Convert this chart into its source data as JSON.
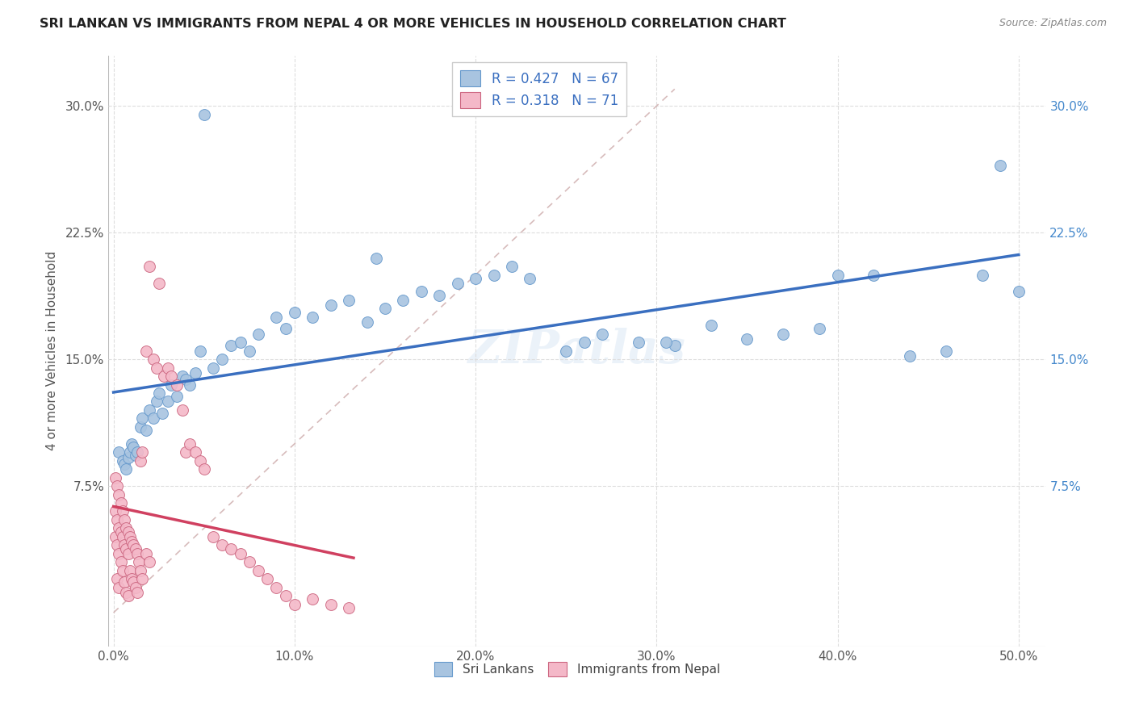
{
  "title": "SRI LANKAN VS IMMIGRANTS FROM NEPAL 4 OR MORE VEHICLES IN HOUSEHOLD CORRELATION CHART",
  "source": "Source: ZipAtlas.com",
  "ylabel_label": "4 or more Vehicles in Household",
  "x_tick_vals": [
    0.0,
    0.1,
    0.2,
    0.3,
    0.4,
    0.5
  ],
  "y_tick_vals": [
    0.075,
    0.15,
    0.225,
    0.3
  ],
  "xmin": -0.003,
  "xmax": 0.515,
  "ymin": -0.02,
  "ymax": 0.33,
  "sri_R": 0.427,
  "sri_N": 67,
  "nep_R": 0.318,
  "nep_N": 71,
  "color_sri": "#a8c4e0",
  "color_sri_edge": "#6699cc",
  "color_nep": "#f4b8c8",
  "color_nep_edge": "#cc6680",
  "color_sri_line": "#3a6fc0",
  "color_nep_line": "#d04060",
  "color_diag": "#d0b0b0",
  "sri_x": [
    0.003,
    0.005,
    0.006,
    0.007,
    0.008,
    0.009,
    0.01,
    0.011,
    0.012,
    0.013,
    0.015,
    0.016,
    0.018,
    0.02,
    0.022,
    0.024,
    0.025,
    0.027,
    0.03,
    0.032,
    0.035,
    0.038,
    0.04,
    0.042,
    0.045,
    0.048,
    0.05,
    0.055,
    0.06,
    0.065,
    0.07,
    0.075,
    0.08,
    0.09,
    0.095,
    0.1,
    0.11,
    0.12,
    0.13,
    0.14,
    0.15,
    0.16,
    0.17,
    0.18,
    0.19,
    0.2,
    0.21,
    0.22,
    0.23,
    0.25,
    0.26,
    0.27,
    0.29,
    0.31,
    0.33,
    0.35,
    0.37,
    0.39,
    0.4,
    0.42,
    0.44,
    0.46,
    0.48,
    0.49,
    0.5,
    0.305,
    0.145
  ],
  "sri_y": [
    0.095,
    0.09,
    0.088,
    0.085,
    0.092,
    0.095,
    0.1,
    0.098,
    0.093,
    0.095,
    0.11,
    0.115,
    0.108,
    0.12,
    0.115,
    0.125,
    0.13,
    0.118,
    0.125,
    0.135,
    0.128,
    0.14,
    0.138,
    0.135,
    0.142,
    0.155,
    0.295,
    0.145,
    0.15,
    0.158,
    0.16,
    0.155,
    0.165,
    0.175,
    0.168,
    0.178,
    0.175,
    0.182,
    0.185,
    0.172,
    0.18,
    0.185,
    0.19,
    0.188,
    0.195,
    0.198,
    0.2,
    0.205,
    0.198,
    0.155,
    0.16,
    0.165,
    0.16,
    0.158,
    0.17,
    0.162,
    0.165,
    0.168,
    0.2,
    0.2,
    0.152,
    0.155,
    0.2,
    0.265,
    0.19,
    0.16,
    0.21
  ],
  "nep_x": [
    0.001,
    0.001,
    0.001,
    0.002,
    0.002,
    0.002,
    0.002,
    0.003,
    0.003,
    0.003,
    0.003,
    0.004,
    0.004,
    0.004,
    0.005,
    0.005,
    0.005,
    0.006,
    0.006,
    0.006,
    0.007,
    0.007,
    0.007,
    0.008,
    0.008,
    0.008,
    0.009,
    0.009,
    0.01,
    0.01,
    0.011,
    0.011,
    0.012,
    0.012,
    0.013,
    0.013,
    0.014,
    0.015,
    0.015,
    0.016,
    0.016,
    0.018,
    0.018,
    0.02,
    0.02,
    0.022,
    0.024,
    0.025,
    0.028,
    0.03,
    0.032,
    0.035,
    0.038,
    0.04,
    0.042,
    0.045,
    0.048,
    0.05,
    0.055,
    0.06,
    0.065,
    0.07,
    0.075,
    0.08,
    0.085,
    0.09,
    0.095,
    0.1,
    0.11,
    0.12,
    0.13
  ],
  "nep_y": [
    0.08,
    0.06,
    0.045,
    0.075,
    0.055,
    0.04,
    0.02,
    0.07,
    0.05,
    0.035,
    0.015,
    0.065,
    0.048,
    0.03,
    0.06,
    0.045,
    0.025,
    0.055,
    0.04,
    0.018,
    0.05,
    0.038,
    0.012,
    0.048,
    0.035,
    0.01,
    0.045,
    0.025,
    0.042,
    0.02,
    0.04,
    0.018,
    0.038,
    0.015,
    0.035,
    0.012,
    0.03,
    0.09,
    0.025,
    0.095,
    0.02,
    0.155,
    0.035,
    0.205,
    0.03,
    0.15,
    0.145,
    0.195,
    0.14,
    0.145,
    0.14,
    0.135,
    0.12,
    0.095,
    0.1,
    0.095,
    0.09,
    0.085,
    0.045,
    0.04,
    0.038,
    0.035,
    0.03,
    0.025,
    0.02,
    0.015,
    0.01,
    0.005,
    0.008,
    0.005,
    0.003
  ]
}
